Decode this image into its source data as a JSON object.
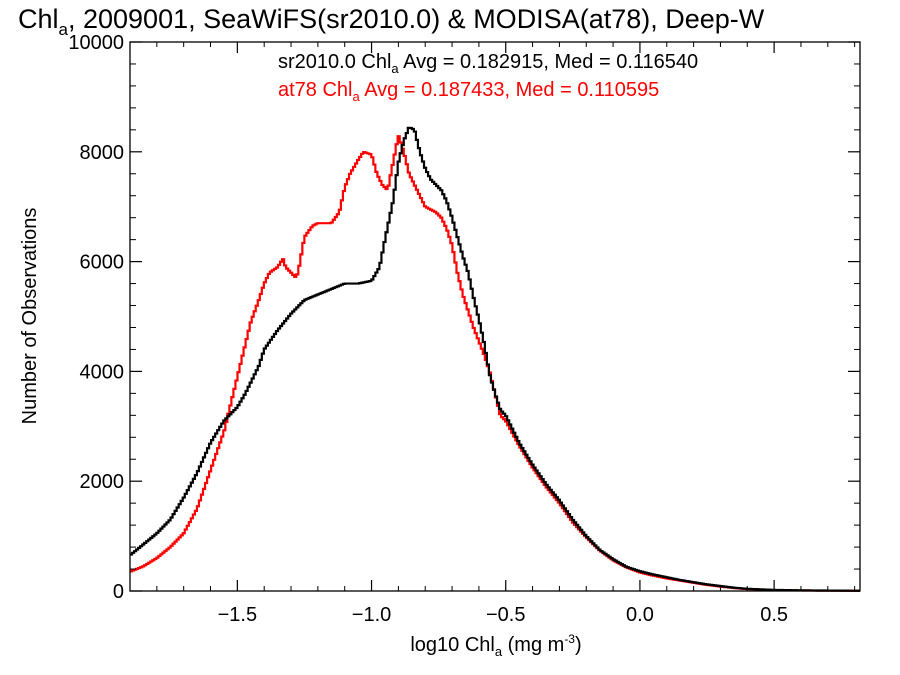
{
  "chart_data": {
    "type": "line",
    "title": {
      "pre": "Chl",
      "sub": "a",
      "post": ", 2009001, SeaWiFS(sr2010.0) & MODISA(at78), Deep-W"
    },
    "xlabel": {
      "pre": "log10 Chl",
      "sub": "a",
      "mid": " (mg m",
      "sup": "-3",
      "post": ")"
    },
    "ylabel": "Number of Observations",
    "xlim": [
      -1.9,
      0.82
    ],
    "ylim": [
      0,
      10000
    ],
    "xticks": [
      {
        "value": -1.5,
        "label": "−1.5"
      },
      {
        "value": -1.0,
        "label": "−1.0"
      },
      {
        "value": -0.5,
        "label": "−0.5"
      },
      {
        "value": 0.0,
        "label": "0.0"
      },
      {
        "value": 0.5,
        "label": "0.5"
      }
    ],
    "yticks": [
      {
        "value": 0,
        "label": "0"
      },
      {
        "value": 2000,
        "label": "2000"
      },
      {
        "value": 4000,
        "label": "4000"
      },
      {
        "value": 6000,
        "label": "6000"
      },
      {
        "value": 8000,
        "label": "8000"
      },
      {
        "value": 10000,
        "label": "10000"
      }
    ],
    "x_minor_step": 0.1,
    "y_minor_step": 400,
    "grid": false,
    "annotations": [
      {
        "series": "sr2010.0",
        "color": "#000000",
        "pre": "sr2010.0 Chl",
        "sub": "a",
        "post": " Avg = 0.182915, Med = 0.116540"
      },
      {
        "series": "at78",
        "color": "#ff0000",
        "pre": "at78 Chl",
        "sub": "a",
        "post": " Avg = 0.187433, Med = 0.110595"
      }
    ],
    "series": [
      {
        "id": "sr2010",
        "color": "#000000",
        "x": [
          -1.9,
          -1.85,
          -1.8,
          -1.75,
          -1.7,
          -1.65,
          -1.6,
          -1.55,
          -1.5,
          -1.47,
          -1.45,
          -1.42,
          -1.4,
          -1.35,
          -1.3,
          -1.25,
          -1.2,
          -1.15,
          -1.1,
          -1.05,
          -1.0,
          -0.97,
          -0.95,
          -0.92,
          -0.9,
          -0.88,
          -0.86,
          -0.84,
          -0.82,
          -0.8,
          -0.78,
          -0.76,
          -0.74,
          -0.72,
          -0.7,
          -0.68,
          -0.66,
          -0.64,
          -0.62,
          -0.6,
          -0.58,
          -0.56,
          -0.54,
          -0.52,
          -0.5,
          -0.45,
          -0.4,
          -0.35,
          -0.3,
          -0.25,
          -0.2,
          -0.15,
          -0.1,
          -0.05,
          0.0,
          0.05,
          0.1,
          0.15,
          0.2,
          0.25,
          0.3,
          0.35,
          0.4,
          0.45,
          0.5,
          0.6,
          0.7,
          0.82
        ],
        "values": [
          650,
          850,
          1050,
          1300,
          1700,
          2150,
          2700,
          3100,
          3350,
          3600,
          3800,
          4100,
          4400,
          4750,
          5050,
          5300,
          5400,
          5500,
          5600,
          5600,
          5650,
          5900,
          6400,
          7100,
          7800,
          8200,
          8450,
          8400,
          8000,
          7700,
          7500,
          7400,
          7300,
          7100,
          6800,
          6450,
          6100,
          5800,
          5350,
          4950,
          4500,
          3950,
          3600,
          3300,
          3200,
          2700,
          2300,
          1950,
          1650,
          1300,
          1000,
          750,
          580,
          440,
          360,
          300,
          250,
          200,
          160,
          120,
          90,
          60,
          40,
          30,
          20,
          12,
          8,
          5
        ]
      },
      {
        "id": "at78",
        "color": "#ff0000",
        "x": [
          -1.9,
          -1.85,
          -1.8,
          -1.75,
          -1.7,
          -1.65,
          -1.6,
          -1.55,
          -1.5,
          -1.47,
          -1.45,
          -1.42,
          -1.4,
          -1.38,
          -1.35,
          -1.33,
          -1.32,
          -1.3,
          -1.28,
          -1.27,
          -1.25,
          -1.22,
          -1.2,
          -1.15,
          -1.12,
          -1.1,
          -1.08,
          -1.05,
          -1.03,
          -1.0,
          -0.98,
          -0.96,
          -0.94,
          -0.92,
          -0.9,
          -0.88,
          -0.86,
          -0.84,
          -0.82,
          -0.8,
          -0.78,
          -0.76,
          -0.74,
          -0.72,
          -0.7,
          -0.68,
          -0.66,
          -0.64,
          -0.62,
          -0.6,
          -0.58,
          -0.56,
          -0.54,
          -0.52,
          -0.5,
          -0.45,
          -0.4,
          -0.35,
          -0.3,
          -0.25,
          -0.2,
          -0.15,
          -0.1,
          -0.05,
          0.0,
          0.05,
          0.1,
          0.15,
          0.2,
          0.25,
          0.3,
          0.35,
          0.4,
          0.45,
          0.5,
          0.6,
          0.7,
          0.82
        ],
        "values": [
          350,
          450,
          600,
          800,
          1050,
          1500,
          2200,
          2900,
          3900,
          4500,
          4900,
          5300,
          5600,
          5800,
          5900,
          6050,
          5900,
          5800,
          5700,
          5900,
          6450,
          6650,
          6700,
          6700,
          6900,
          7350,
          7600,
          7850,
          8000,
          7950,
          7600,
          7400,
          7300,
          7800,
          8300,
          8000,
          7600,
          7400,
          7200,
          7000,
          6950,
          6900,
          6800,
          6600,
          6300,
          5800,
          5400,
          5100,
          4800,
          4550,
          4300,
          4000,
          3600,
          3200,
          3100,
          2650,
          2250,
          1900,
          1600,
          1250,
          980,
          740,
          560,
          430,
          340,
          280,
          230,
          190,
          150,
          110,
          80,
          55,
          35,
          25,
          15,
          10,
          6,
          4
        ]
      }
    ]
  }
}
